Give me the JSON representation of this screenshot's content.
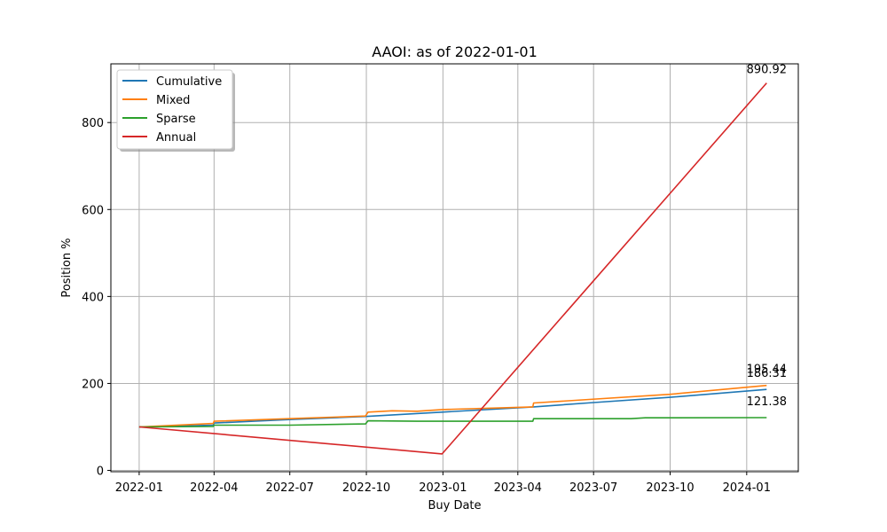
{
  "chart_data": {
    "type": "line",
    "title": "AAOI: as of 2022-01-01",
    "xlabel": "Buy Date",
    "ylabel": "Position %",
    "x_ticks": [
      "2022-01",
      "2022-04",
      "2022-07",
      "2022-10",
      "2023-01",
      "2023-04",
      "2023-07",
      "2023-10",
      "2024-01"
    ],
    "y_ticks": [
      "0",
      "200",
      "400",
      "600",
      "800"
    ],
    "xlim": [
      "2021-11-28",
      "2024-03-03"
    ],
    "ylim": [
      -3,
      935
    ],
    "grid": true,
    "legend_position": "upper left",
    "series": [
      {
        "name": "Cumulative",
        "color": "#1f77b4",
        "points": [
          [
            "2022-01-01",
            100
          ],
          [
            "2022-03-31",
            104
          ],
          [
            "2022-04-01",
            109
          ],
          [
            "2022-06-30",
            117
          ],
          [
            "2022-09-30",
            124
          ],
          [
            "2022-12-31",
            134
          ],
          [
            "2023-04-20",
            146
          ],
          [
            "2023-07-01",
            156
          ],
          [
            "2023-10-01",
            168
          ],
          [
            "2024-01-25",
            186.31
          ]
        ],
        "end_label": "186.31"
      },
      {
        "name": "Mixed",
        "color": "#ff7f0e",
        "points": [
          [
            "2022-01-01",
            100
          ],
          [
            "2022-03-31",
            108
          ],
          [
            "2022-04-01",
            113
          ],
          [
            "2022-06-30",
            119
          ],
          [
            "2022-09-30",
            125
          ],
          [
            "2022-10-03",
            134
          ],
          [
            "2022-11-01",
            137
          ],
          [
            "2022-12-01",
            136
          ],
          [
            "2022-12-31",
            140
          ],
          [
            "2023-04-19",
            146
          ],
          [
            "2023-04-20",
            155
          ],
          [
            "2023-10-01",
            175
          ],
          [
            "2024-01-25",
            195.44
          ]
        ],
        "end_label": "195.44"
      },
      {
        "name": "Sparse",
        "color": "#2ca02c",
        "points": [
          [
            "2022-01-01",
            100
          ],
          [
            "2022-03-31",
            101
          ],
          [
            "2022-04-01",
            104
          ],
          [
            "2022-07-01",
            104
          ],
          [
            "2022-09-30",
            107
          ],
          [
            "2022-10-03",
            114
          ],
          [
            "2022-12-01",
            113
          ],
          [
            "2023-04-19",
            113
          ],
          [
            "2023-04-20",
            119
          ],
          [
            "2023-08-15",
            119
          ],
          [
            "2023-09-01",
            121
          ],
          [
            "2024-01-25",
            121.38
          ]
        ],
        "end_label": "121.38"
      },
      {
        "name": "Annual",
        "color": "#d62728",
        "points": [
          [
            "2022-01-01",
            100
          ],
          [
            "2022-12-31",
            38
          ],
          [
            "2024-01-25",
            890.92
          ]
        ],
        "end_label": "890.92"
      }
    ]
  }
}
